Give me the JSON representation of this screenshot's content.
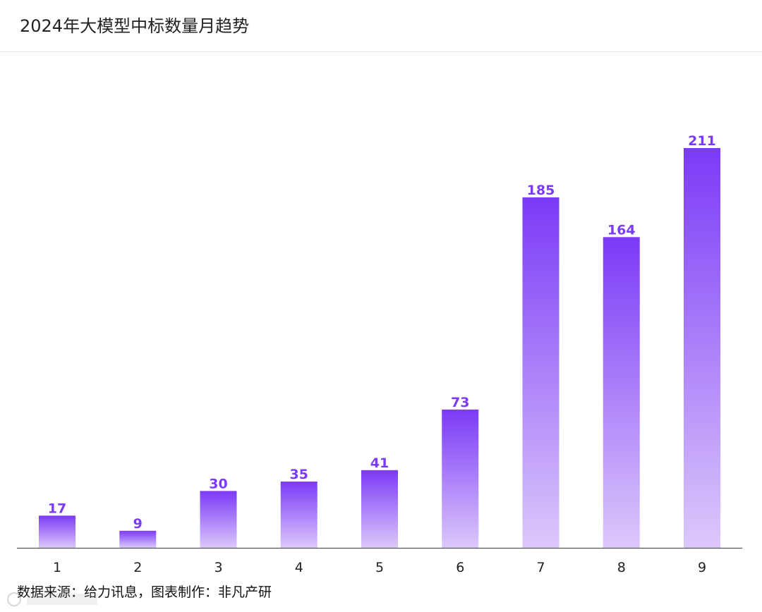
{
  "page": {
    "title": "2024年大模型中标数量月趋势",
    "source": "数据来源：给力讯息，图表制作：非凡产研"
  },
  "chart_data": {
    "type": "bar",
    "title": "2024年大模型中标数量月趋势",
    "xlabel": "",
    "ylabel": "",
    "categories": [
      "1",
      "2",
      "3",
      "4",
      "5",
      "6",
      "7",
      "8",
      "9"
    ],
    "values": [
      17,
      9,
      30,
      35,
      41,
      73,
      185,
      164,
      211
    ],
    "ylim": [
      0,
      211
    ],
    "grid": false,
    "legend": "none",
    "colors": {
      "bar_top": "#7b3af7",
      "bar_bottom": "#dcc8fb",
      "label": "#7b3af7",
      "axis": "#555555"
    }
  }
}
